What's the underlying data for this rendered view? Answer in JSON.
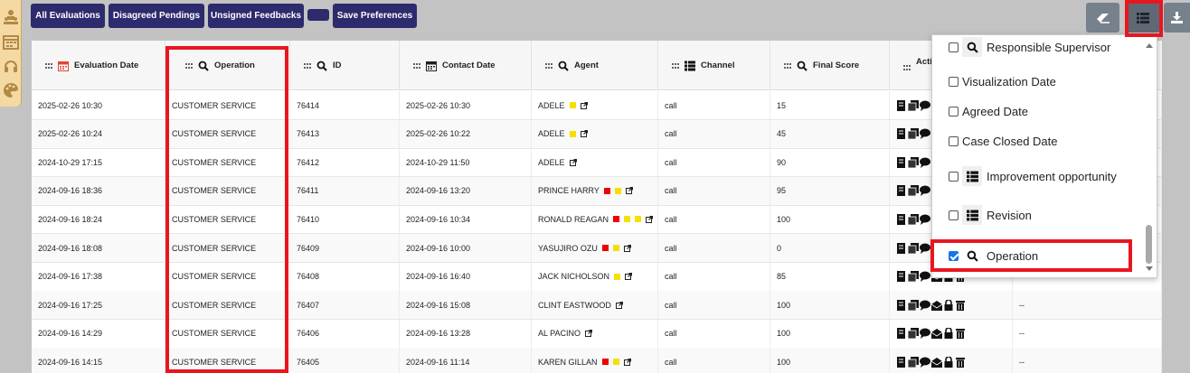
{
  "toolbar": {
    "all_evaluations": "All Evaluations",
    "disagreed_pendings": "Disagreed Pendings",
    "unsigned_feedbacks": "Unsigned Feedbacks",
    "blank": "",
    "save_preferences": "Save Preferences"
  },
  "columns": [
    "Evaluation Date",
    "Operation",
    "ID",
    "Contact Date",
    "Agent",
    "Channel",
    "Final Score",
    "Acti"
  ],
  "rows": [
    {
      "eval_date": "2025-02-26 10:30",
      "operation": "CUSTOMER SERVICE",
      "id": "76414",
      "contact_date": "2025-02-26 10:30",
      "agent": "ADELE",
      "channel": "call",
      "score": "15",
      "extra": ""
    },
    {
      "eval_date": "2025-02-26 10:24",
      "operation": "CUSTOMER SERVICE",
      "id": "76413",
      "contact_date": "2025-02-26 10:22",
      "agent": "ADELE",
      "channel": "call",
      "score": "45",
      "extra": ""
    },
    {
      "eval_date": "2024-10-29 17:15",
      "operation": "CUSTOMER SERVICE",
      "id": "76412",
      "contact_date": "2024-10-29 11:50",
      "agent": "ADELE",
      "channel": "call",
      "score": "90",
      "extra": ""
    },
    {
      "eval_date": "2024-09-16 18:36",
      "operation": "CUSTOMER SERVICE",
      "id": "76411",
      "contact_date": "2024-09-16 13:20",
      "agent": "PRINCE HARRY",
      "channel": "call",
      "score": "95",
      "extra": ""
    },
    {
      "eval_date": "2024-09-16 18:24",
      "operation": "CUSTOMER SERVICE",
      "id": "76410",
      "contact_date": "2024-09-16 10:34",
      "agent": "RONALD REAGAN",
      "channel": "call",
      "score": "100",
      "extra": ""
    },
    {
      "eval_date": "2024-09-16 18:08",
      "operation": "CUSTOMER SERVICE",
      "id": "76409",
      "contact_date": "2024-09-16 10:00",
      "agent": "YASUJIRO OZU",
      "channel": "call",
      "score": "0",
      "extra": ""
    },
    {
      "eval_date": "2024-09-16 17:38",
      "operation": "CUSTOMER SERVICE",
      "id": "76408",
      "contact_date": "2024-09-16 16:40",
      "agent": "JACK NICHOLSON",
      "channel": "call",
      "score": "85",
      "extra": ""
    },
    {
      "eval_date": "2024-09-16 17:25",
      "operation": "CUSTOMER SERVICE",
      "id": "76407",
      "contact_date": "2024-09-16 15:08",
      "agent": "CLINT EASTWOOD",
      "channel": "call",
      "score": "100",
      "extra": "--"
    },
    {
      "eval_date": "2024-09-16 14:29",
      "operation": "CUSTOMER SERVICE",
      "id": "76406",
      "contact_date": "2024-09-16 13:28",
      "agent": "AL PACINO",
      "channel": "call",
      "score": "100",
      "extra": "--"
    },
    {
      "eval_date": "2024-09-16 14:15",
      "operation": "CUSTOMER SERVICE",
      "id": "76405",
      "contact_date": "2024-09-16 11:14",
      "agent": "KAREN GILLAN",
      "channel": "call",
      "score": "100",
      "extra": "--"
    }
  ],
  "dropdown": {
    "items": [
      "Responsible Supervisor",
      "Visualization Date",
      "Agreed Date",
      "Case Closed Date",
      "Improvement opportunity",
      "Revision",
      "Operation"
    ]
  },
  "colors": {
    "accent": "#2d2a6e",
    "highlight": "#e8161f",
    "flag_red": "#e00000",
    "flag_yellow": "#f5e000"
  }
}
